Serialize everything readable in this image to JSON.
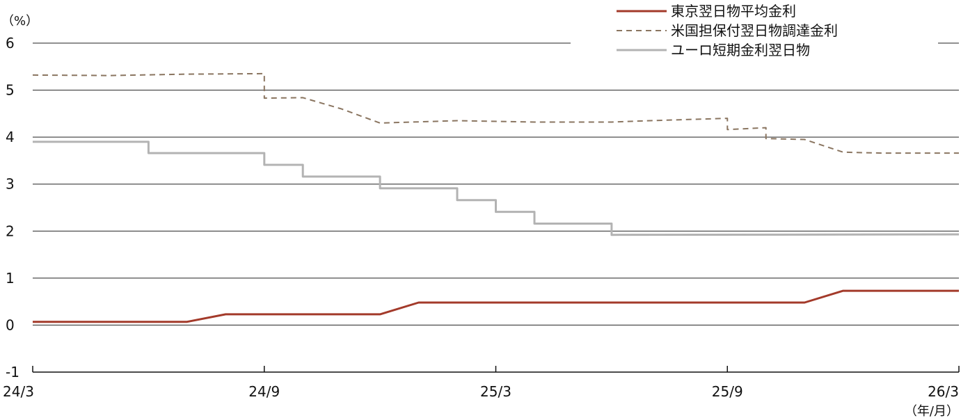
{
  "chart_data": {
    "type": "line",
    "y_unit_label": "（%）",
    "x_unit_label": "（年/月）",
    "ylim": [
      -1,
      6
    ],
    "y_ticks": [
      -1,
      0,
      1,
      2,
      3,
      4,
      5,
      6
    ],
    "x_range": [
      "2024-03",
      "2026-03"
    ],
    "x_ticks": [
      {
        "label": "24/3",
        "month": 0
      },
      {
        "label": "24/9",
        "month": 6
      },
      {
        "label": "25/3",
        "month": 12
      },
      {
        "label": "25/9",
        "month": 18
      },
      {
        "label": "26/3",
        "month": 24
      }
    ],
    "grid": true,
    "legend_position": "top-right",
    "series": [
      {
        "name": "東京翌日物平均金利",
        "color": "#a33a2a",
        "style": "solid",
        "points": [
          [
            "2024-03",
            0.07
          ],
          [
            "2024-07",
            0.07
          ],
          [
            "2024-08",
            0.23
          ],
          [
            "2024-12",
            0.23
          ],
          [
            "2025-01",
            0.48
          ],
          [
            "2025-11",
            0.48
          ],
          [
            "2025-12",
            0.73
          ],
          [
            "2026-03",
            0.73
          ]
        ]
      },
      {
        "name": "米国担保付翌日物調達金利",
        "color": "#8a7560",
        "style": "dashed",
        "points": [
          [
            "2024-03",
            5.32
          ],
          [
            "2024-05",
            5.31
          ],
          [
            "2024-07",
            5.34
          ],
          [
            "2024-09",
            5.35
          ],
          [
            "2024-09",
            4.83
          ],
          [
            "2024-10",
            4.84
          ],
          [
            "2024-11",
            4.6
          ],
          [
            "2024-12",
            4.3
          ],
          [
            "2025-02",
            4.35
          ],
          [
            "2025-04",
            4.32
          ],
          [
            "2025-06",
            4.32
          ],
          [
            "2025-07",
            4.35
          ],
          [
            "2025-09",
            4.4
          ],
          [
            "2025-09",
            4.16
          ],
          [
            "2025-10",
            4.2
          ],
          [
            "2025-10",
            3.97
          ],
          [
            "2025-11",
            3.95
          ],
          [
            "2025-12",
            3.68
          ],
          [
            "2026-01",
            3.66
          ],
          [
            "2026-03",
            3.66
          ]
        ]
      },
      {
        "name": "ユーロ短期金利翌日物",
        "color": "#b3b3b3",
        "style": "solid",
        "points": [
          [
            "2024-03",
            3.9
          ],
          [
            "2024-06",
            3.9
          ],
          [
            "2024-06",
            3.66
          ],
          [
            "2024-09",
            3.66
          ],
          [
            "2024-09",
            3.41
          ],
          [
            "2024-10",
            3.41
          ],
          [
            "2024-10",
            3.16
          ],
          [
            "2024-12",
            3.16
          ],
          [
            "2024-12",
            2.91
          ],
          [
            "2025-02",
            2.91
          ],
          [
            "2025-02",
            2.66
          ],
          [
            "2025-03",
            2.66
          ],
          [
            "2025-03",
            2.41
          ],
          [
            "2025-04",
            2.41
          ],
          [
            "2025-04",
            2.16
          ],
          [
            "2025-06",
            2.16
          ],
          [
            "2025-06",
            1.92
          ],
          [
            "2026-03",
            1.93
          ]
        ]
      }
    ]
  }
}
